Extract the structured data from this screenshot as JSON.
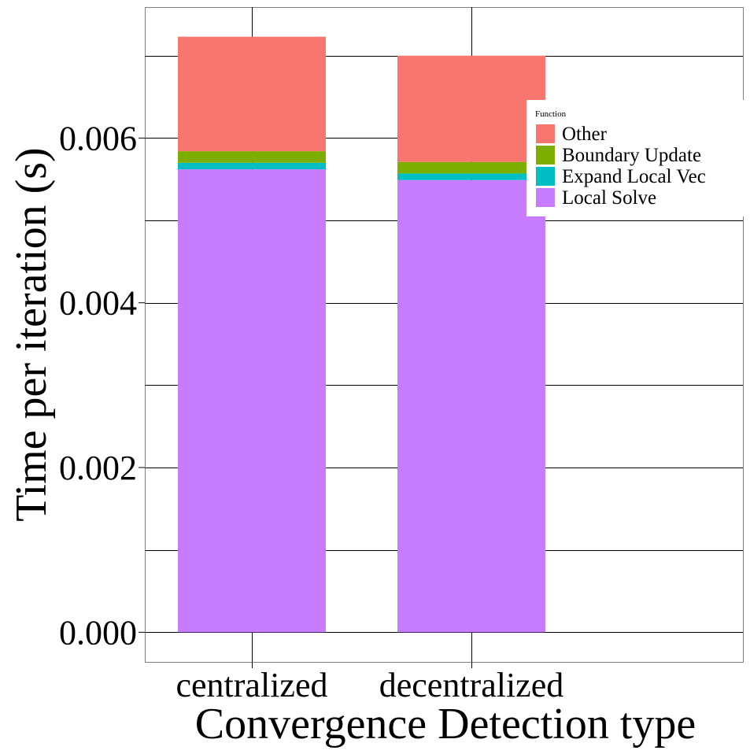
{
  "chart_data": {
    "type": "bar",
    "stacked": true,
    "title": "",
    "xlabel": "Convergence Detection type",
    "ylabel": "Time per iteration (s)",
    "categories": [
      "centralized",
      "decentralized"
    ],
    "ylim": [
      -0.00036,
      0.00759
    ],
    "yticks": [
      0.0,
      0.002,
      0.004,
      0.006
    ],
    "ytick_labels": [
      "0.000",
      "0.002",
      "0.004",
      "0.006"
    ],
    "grid": true,
    "legend": {
      "title": "Function",
      "position": "right"
    },
    "series": [
      {
        "name": "Local Solve",
        "color": "#C77CFF",
        "values": [
          0.00562,
          0.00549
        ]
      },
      {
        "name": "Expand Local Vec",
        "color": "#00BFC4",
        "values": [
          8e-05,
          8e-05
        ]
      },
      {
        "name": "Boundary Update",
        "color": "#7CAE00",
        "values": [
          0.00014,
          0.00014
        ]
      },
      {
        "name": "Other",
        "color": "#F8766D",
        "values": [
          0.00139,
          0.00129
        ]
      }
    ],
    "legend_order": [
      "Other",
      "Boundary Update",
      "Expand Local Vec",
      "Local Solve"
    ]
  }
}
